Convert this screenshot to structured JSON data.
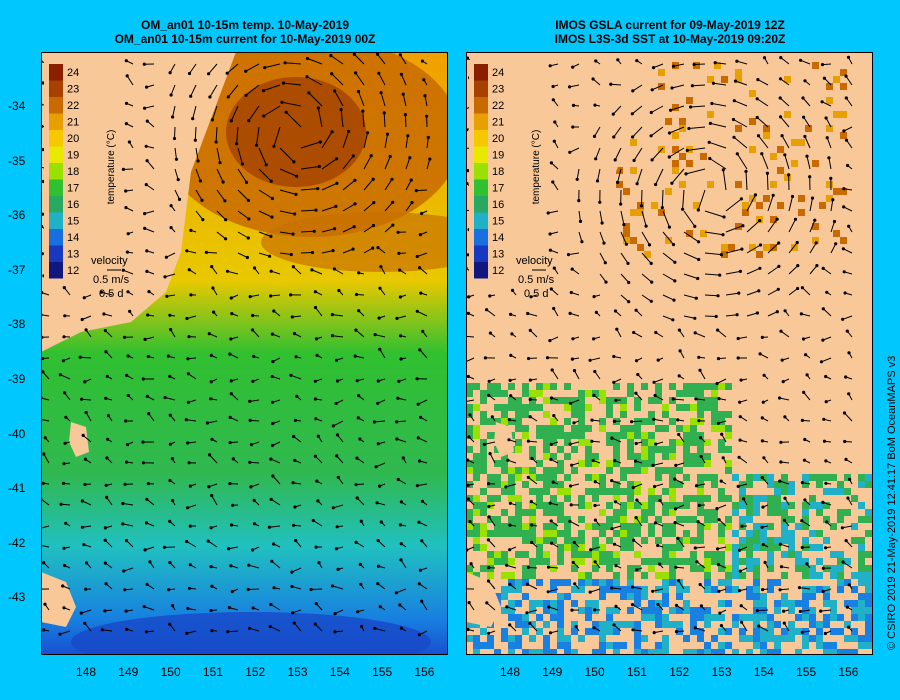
{
  "left_panel": {
    "title_line1": "OM_an01 10-15m temp. 10-May-2019",
    "title_line2": "OM_an01 10-15m current for 10-May-2019 00Z"
  },
  "right_panel": {
    "title_line1": "IMOS GSLA current for 09-May-2019 12Z",
    "title_line2": "IMOS L3S-3d SST at 10-May-2019 09:20Z"
  },
  "colorbar": {
    "label": "temperature (°C)",
    "ticks": [
      "24",
      "23",
      "22",
      "21",
      "20",
      "19",
      "18",
      "17",
      "16",
      "15",
      "14",
      "13",
      "12"
    ],
    "colors": [
      "#8a1e00",
      "#a84000",
      "#c86a00",
      "#e8a000",
      "#f6c800",
      "#e8e800",
      "#9ae000",
      "#30c030",
      "#28a860",
      "#20b0c8",
      "#1870e0",
      "#1838c0",
      "#101880"
    ]
  },
  "velocity_key": {
    "label": "velocity",
    "speed": "0.5 m/s",
    "time": "0.5 d"
  },
  "axes": {
    "y_ticks": [
      "-34",
      "-35",
      "-36",
      "-37",
      "-38",
      "-39",
      "-40",
      "-41",
      "-42",
      "-43"
    ],
    "x_ticks": [
      "148",
      "149",
      "150",
      "151",
      "152",
      "153",
      "154",
      "155",
      "156"
    ]
  },
  "credit": "© CSIRO 2019   21-May-2019 12:41:17 BoM OceanMAPS v3",
  "map_colors": {
    "land": "#f8c898",
    "background": "#00c8ff"
  }
}
